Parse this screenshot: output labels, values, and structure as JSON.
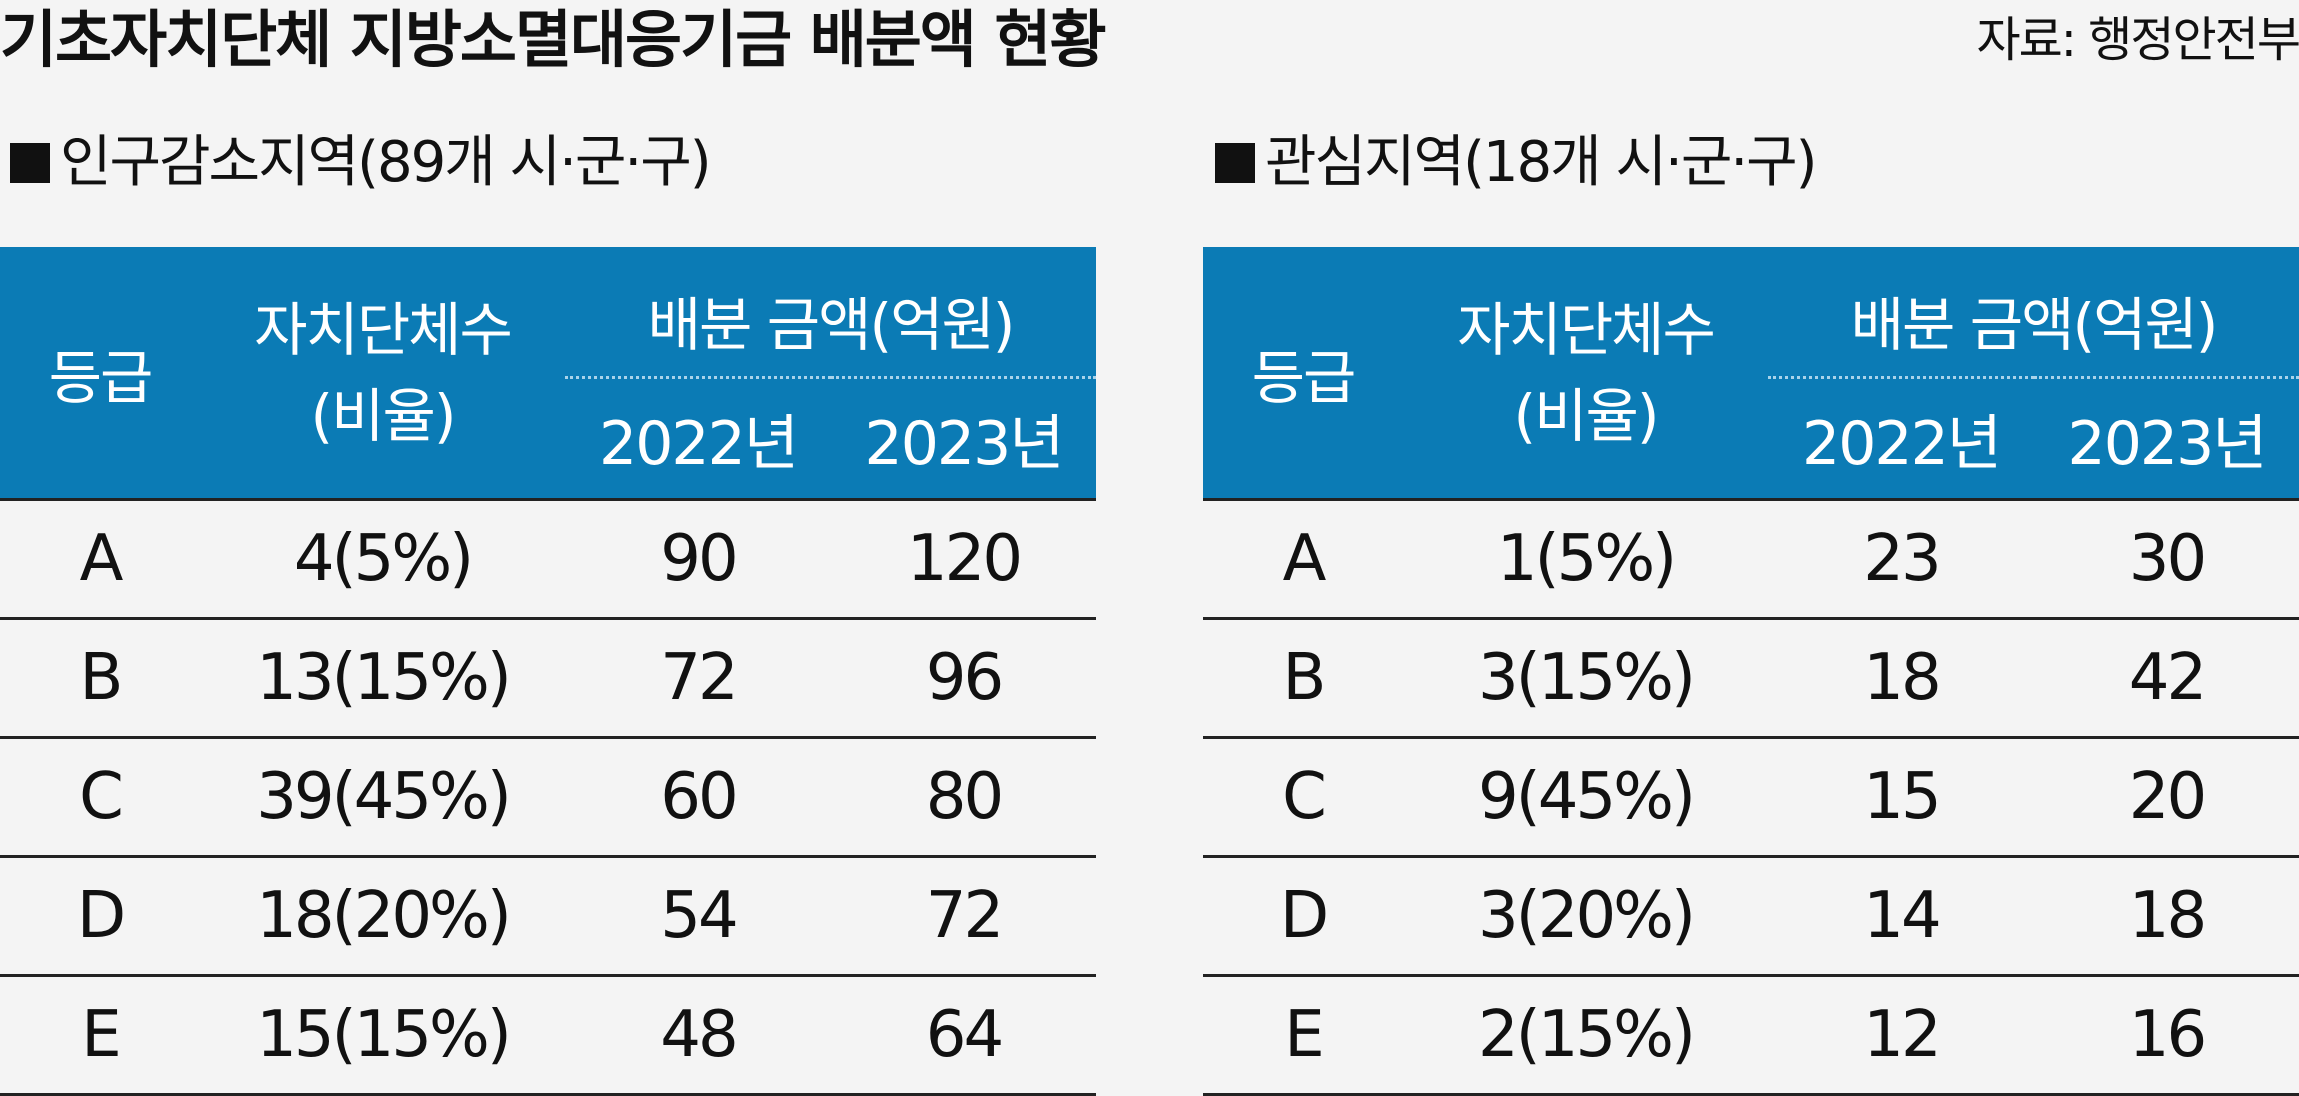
{
  "title": "기초자치단체 지방소멸대응기금 배분액 현황",
  "source": "자료: 행정안전부",
  "headers": {
    "grade": "등급",
    "count": "자치단체수",
    "count_sub": "(비율)",
    "amount": "배분 금액(억원)",
    "year1": "2022년",
    "year2": "2023년"
  },
  "left": {
    "section_title": "인구감소지역(89개 시·군·구)",
    "rows": [
      {
        "grade": "A",
        "count": "4(5%)",
        "y2022": "90",
        "y2023": "120"
      },
      {
        "grade": "B",
        "count": "13(15%)",
        "y2022": "72",
        "y2023": "96"
      },
      {
        "grade": "C",
        "count": "39(45%)",
        "y2022": "60",
        "y2023": "80"
      },
      {
        "grade": "D",
        "count": "18(20%)",
        "y2022": "54",
        "y2023": "72"
      },
      {
        "grade": "E",
        "count": "15(15%)",
        "y2022": "48",
        "y2023": "64"
      }
    ]
  },
  "right": {
    "section_title": "관심지역(18개 시·군·구)",
    "rows": [
      {
        "grade": "A",
        "count": "1(5%)",
        "y2022": "23",
        "y2023": "30"
      },
      {
        "grade": "B",
        "count": "3(15%)",
        "y2022": "18",
        "y2023": "42"
      },
      {
        "grade": "C",
        "count": "9(45%)",
        "y2022": "15",
        "y2023": "20"
      },
      {
        "grade": "D",
        "count": "3(20%)",
        "y2022": "14",
        "y2023": "18"
      },
      {
        "grade": "E",
        "count": "2(15%)",
        "y2022": "12",
        "y2023": "16"
      }
    ]
  },
  "colors": {
    "header_bg": "#0b7bb5",
    "header_text": "#ffffff",
    "page_bg": "#f4f4f4"
  }
}
